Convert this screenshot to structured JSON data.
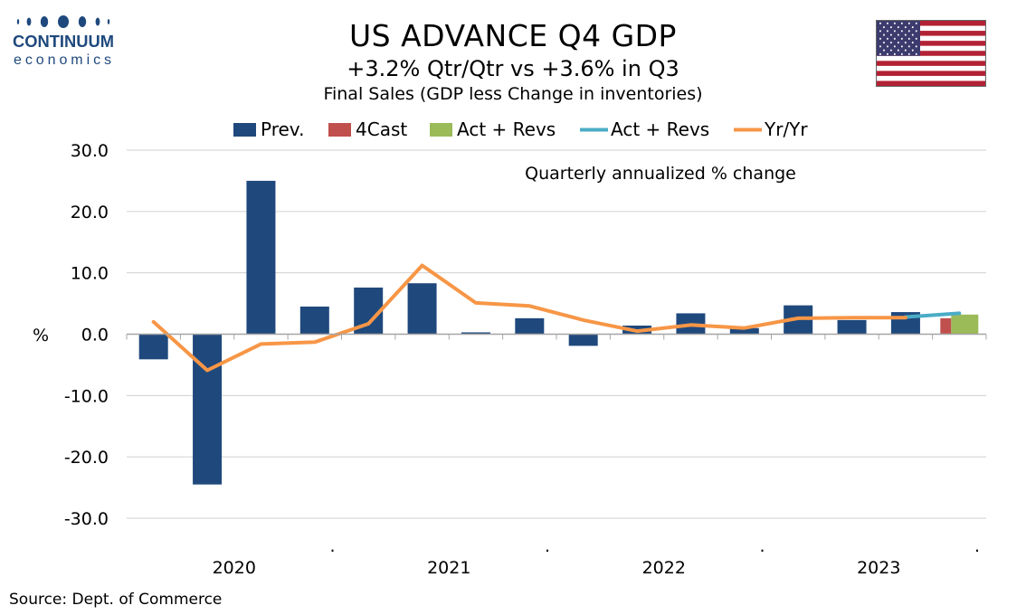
{
  "header": {
    "title": "US ADVANCE Q4  GDP",
    "subtitle": "+3.2% Qtr/Qtr vs +3.6% in Q3",
    "subtitle2": "Final Sales (GDP less Change in inventories)"
  },
  "logo": {
    "word1": "CONTINUUM",
    "word2": "economics",
    "icon": "continuum-dots-logo"
  },
  "flag": {
    "icon": "us-flag-icon"
  },
  "source": "Source: Dept. of Commerce",
  "colors": {
    "prev": "#1f497d",
    "forecast": "#c0504d",
    "actual": "#9bbb59",
    "act_line": "#4bacc6",
    "yoy": "#f79646"
  },
  "chart_data": {
    "type": "bar",
    "annotation": "Quarterly annualized % change",
    "ylabel": "%",
    "ylim": [
      -30,
      30
    ],
    "yticks": [
      "30.0",
      "20.0",
      "10.0",
      "0.0",
      "-10.0",
      "-20.0",
      "-30.0"
    ],
    "ytick_values": [
      30,
      20,
      10,
      0,
      -10,
      -20,
      -30
    ],
    "year_labels": [
      "2020",
      "2021",
      "2022",
      "2023"
    ],
    "year_dots": [
      ".",
      ".",
      ".",
      "."
    ],
    "categories": [
      "2020Q1",
      "2020Q2",
      "2020Q3",
      "2020Q4",
      "2021Q1",
      "2021Q2",
      "2021Q3",
      "2021Q4",
      "2022Q1",
      "2022Q2",
      "2022Q3",
      "2022Q4",
      "2023Q1",
      "2023Q2",
      "2023Q3",
      "2023Q4"
    ],
    "legend": [
      {
        "label": "Prev.",
        "kind": "box",
        "color": "#1f497d"
      },
      {
        "label": "4Cast",
        "kind": "box",
        "color": "#c0504d"
      },
      {
        "label": "Act + Revs",
        "kind": "box",
        "color": "#9bbb59"
      },
      {
        "label": "Act + Revs",
        "kind": "line",
        "color": "#4bacc6"
      },
      {
        "label": "Yr/Yr",
        "kind": "line",
        "color": "#f79646"
      }
    ],
    "series": [
      {
        "name": "Prev.",
        "values": [
          -4.1,
          -24.5,
          25.0,
          4.5,
          7.6,
          8.3,
          0.3,
          2.6,
          -1.9,
          1.4,
          3.4,
          1.0,
          4.7,
          2.3,
          3.6,
          null
        ]
      },
      {
        "name": "4Cast",
        "values": [
          null,
          null,
          null,
          null,
          null,
          null,
          null,
          null,
          null,
          null,
          null,
          null,
          null,
          null,
          null,
          2.6
        ]
      },
      {
        "name": "Act + Revs",
        "values": [
          null,
          null,
          null,
          null,
          null,
          null,
          null,
          null,
          null,
          null,
          null,
          null,
          null,
          null,
          null,
          3.2
        ]
      },
      {
        "name": "Act + Revs",
        "type": "line",
        "values": [
          null,
          null,
          null,
          null,
          null,
          null,
          null,
          null,
          null,
          null,
          null,
          null,
          null,
          null,
          2.8,
          3.4
        ]
      },
      {
        "name": "Yr/Yr",
        "type": "line",
        "values": [
          2.0,
          -5.9,
          -1.6,
          -1.3,
          1.7,
          11.2,
          5.1,
          4.6,
          2.3,
          0.5,
          1.5,
          1.0,
          2.6,
          2.7,
          2.7,
          null
        ]
      }
    ]
  }
}
